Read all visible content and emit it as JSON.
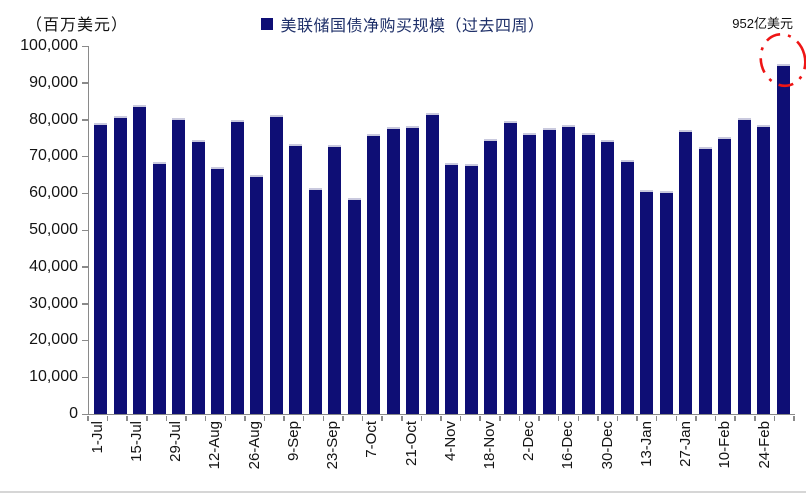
{
  "figure": {
    "unit_label": "（百万美元）",
    "legend": {
      "label": "美联储国债净购买规模（过去四周）"
    },
    "annotation": {
      "text": "952亿美元"
    }
  },
  "colors": {
    "bar": "#0e0e75",
    "bar_highlight_edge": "#c9c9de",
    "legend_text": "#1f3069",
    "axis": "#8a8a8a",
    "annotation_circle": "#ee1515",
    "bottom_divider": "#d6d6d6"
  },
  "chart_data": {
    "type": "bar",
    "title": "美联储国债净购买规模（过去四周）",
    "unit_label": "（百万美元）",
    "xlabel": "",
    "ylabel": "（百万美元）",
    "ylim": [
      0,
      100000
    ],
    "ytick_step": 10000,
    "ytick_labels": [
      "100,000",
      "90,000",
      "80,000",
      "70,000",
      "60,000",
      "50,000",
      "40,000",
      "30,000",
      "20,000",
      "10,000",
      "0"
    ],
    "grid": false,
    "legend_position": "top-center",
    "x_label_interval": 2,
    "bars": [
      {
        "label": "1-Jul",
        "value": 79000
      },
      {
        "label": "",
        "value": 81000
      },
      {
        "label": "15-Jul",
        "value": 84000
      },
      {
        "label": "",
        "value": 68500
      },
      {
        "label": "29-Jul",
        "value": 80500
      },
      {
        "label": "",
        "value": 74400
      },
      {
        "label": "12-Aug",
        "value": 67000
      },
      {
        "label": "",
        "value": 79800
      },
      {
        "label": "26-Aug",
        "value": 65000
      },
      {
        "label": "",
        "value": 81200
      },
      {
        "label": "9-Sep",
        "value": 73500
      },
      {
        "label": "",
        "value": 61500
      },
      {
        "label": "23-Sep",
        "value": 73000
      },
      {
        "label": "",
        "value": 58800
      },
      {
        "label": "7-Oct",
        "value": 76200
      },
      {
        "label": "",
        "value": 78000
      },
      {
        "label": "21-Oct",
        "value": 78200
      },
      {
        "label": "",
        "value": 81900
      },
      {
        "label": "4-Nov",
        "value": 68200
      },
      {
        "label": "",
        "value": 67900
      },
      {
        "label": "18-Nov",
        "value": 74600
      },
      {
        "label": "",
        "value": 79500
      },
      {
        "label": "2-Dec",
        "value": 76400
      },
      {
        "label": "",
        "value": 77600
      },
      {
        "label": "16-Dec",
        "value": 78500
      },
      {
        "label": "",
        "value": 76400
      },
      {
        "label": "30-Dec",
        "value": 74500
      },
      {
        "label": "",
        "value": 69000
      },
      {
        "label": "13-Jan",
        "value": 61000
      },
      {
        "label": "",
        "value": 60700
      },
      {
        "label": "27-Jan",
        "value": 77200
      },
      {
        "label": "",
        "value": 72500
      },
      {
        "label": "10-Feb",
        "value": 75400
      },
      {
        "label": "",
        "value": 80500
      },
      {
        "label": "24-Feb",
        "value": 78500
      },
      {
        "label": "",
        "value": 95200
      }
    ],
    "annotation": {
      "text": "952亿美元",
      "bar_index": 35,
      "value": 95200
    }
  }
}
